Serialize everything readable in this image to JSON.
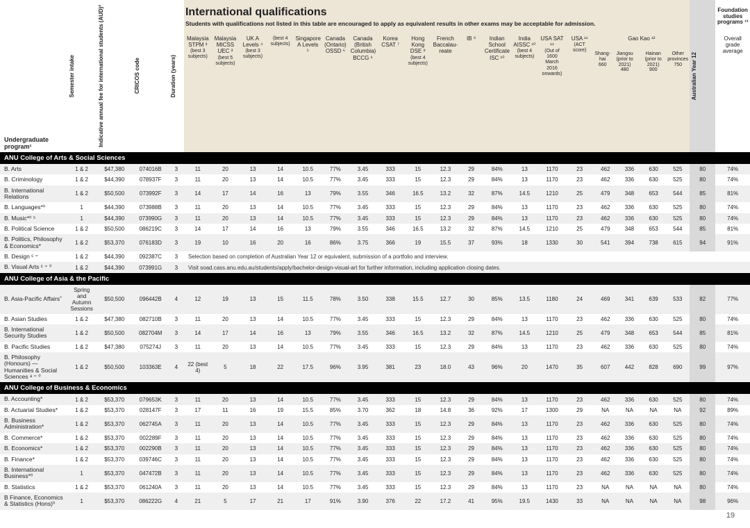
{
  "page_number": "19",
  "intl": {
    "title": "International qualifications",
    "subtitle": "Students with qualifications not listed in this table are encouraged to apply as equivalent results in other exams may be acceptable for admission."
  },
  "fixed_headers": {
    "program": "Undergraduate program¹",
    "semester": "Semester intake",
    "fee": "Indicative annual fee for international students (AUD)²",
    "cricos": "CRICOS code",
    "duration": "Duration (years)"
  },
  "qual_headers": [
    {
      "top": "Malaysia STPM ³",
      "sub": "(best 3 subjects)"
    },
    {
      "top": "Malaysia MICSS UEC ³",
      "sub": "(best 5 subjects)"
    },
    {
      "top": "UK A Levels ⁴",
      "sub": "(best 3 subjects)"
    },
    {
      "top": "",
      "sub": "(best 4 subjects)"
    },
    {
      "top": "Singapore A Levels ⁵",
      "sub": ""
    },
    {
      "top": "Canada (Ontario) OSSD ⁶",
      "sub": ""
    },
    {
      "top": "Canada (British Columbia) BCCG ⁶",
      "sub": ""
    },
    {
      "top": "Korea CSAT ⁷",
      "sub": ""
    },
    {
      "top": "Hong Kong DSE ⁸",
      "sub": "(best 4 subjects)"
    },
    {
      "top": "French Baccalau-reate",
      "sub": ""
    },
    {
      "top": "IB ⁹",
      "sub": ""
    },
    {
      "top": "Indian School Certificate ISC ¹⁰",
      "sub": ""
    },
    {
      "top": "India AISSC ¹⁰",
      "sub": "(best 4 subjects)"
    },
    {
      "top": "USA SAT ¹¹",
      "sub": "(Out of 1600 March 2016 onwards)"
    },
    {
      "top": "USA ¹¹",
      "sub": "(ACT score)"
    }
  ],
  "gaokao": {
    "title": "Gao Kao ¹²",
    "subs": [
      {
        "l1": "Shang-",
        "l2": "hai",
        "l3": "660"
      },
      {
        "l1": "Jiangsu",
        "l2": "(prior to 2021)",
        "l3": "480"
      },
      {
        "l1": "Hainan",
        "l2": "(prior to 2021)",
        "l3": "900"
      },
      {
        "l1": "Other",
        "l2": "provinces",
        "l3": "750"
      }
    ]
  },
  "ay12": "Australian Year 12",
  "foundation": {
    "l1": "Foundation",
    "l2": "studies",
    "l3": "programs ¹³",
    "grade": "Overall grade average"
  },
  "sections": [
    {
      "title": "ANU College of Arts & Social Sciences",
      "rows": [
        {
          "p": "B. Arts",
          "s": "1 & 2",
          "f": "$47,380",
          "c": "074016B",
          "d": "3",
          "q": [
            "11",
            "20",
            "13",
            "14",
            "10.5",
            "77%",
            "3.45",
            "333",
            "15",
            "12.3",
            "29",
            "84%",
            "13",
            "1170",
            "23",
            "462",
            "336",
            "630",
            "525"
          ],
          "ay": "80",
          "g": "74%"
        },
        {
          "p": "B. Criminology",
          "s": "1 & 2",
          "f": "$44,390",
          "c": "078937F",
          "d": "3",
          "q": [
            "11",
            "20",
            "13",
            "14",
            "10.5",
            "77%",
            "3.45",
            "333",
            "15",
            "12.3",
            "29",
            "84%",
            "13",
            "1170",
            "23",
            "462",
            "336",
            "630",
            "525"
          ],
          "ay": "80",
          "g": "74%"
        },
        {
          "p": "B. International Relations",
          "s": "1 & 2",
          "f": "$50,500",
          "c": "073992F",
          "d": "3",
          "q": [
            "14",
            "17",
            "14",
            "16",
            "13",
            "79%",
            "3.55",
            "346",
            "16.5",
            "13.2",
            "32",
            "87%",
            "14.5",
            "1210",
            "25",
            "479",
            "348",
            "653",
            "544"
          ],
          "ay": "85",
          "g": "81%"
        },
        {
          "p": "B. Languages*⁰",
          "s": "1",
          "f": "$44,390",
          "c": "073988B",
          "d": "3",
          "q": [
            "11",
            "20",
            "13",
            "14",
            "10.5",
            "77%",
            "3.45",
            "333",
            "15",
            "12.3",
            "29",
            "84%",
            "13",
            "1170",
            "23",
            "462",
            "336",
            "630",
            "525"
          ],
          "ay": "80",
          "g": "74%"
        },
        {
          "p": "B. Music*⁰ ⁵",
          "s": "1",
          "f": "$44,390",
          "c": "073990G",
          "d": "3",
          "q": [
            "11",
            "20",
            "13",
            "14",
            "10.5",
            "77%",
            "3.45",
            "333",
            "15",
            "12.3",
            "29",
            "84%",
            "13",
            "1170",
            "23",
            "462",
            "336",
            "630",
            "525"
          ],
          "ay": "80",
          "g": "74%"
        },
        {
          "p": "B. Political Science",
          "s": "1 & 2",
          "f": "$50,500",
          "c": "086219C",
          "d": "3",
          "q": [
            "14",
            "17",
            "14",
            "16",
            "13",
            "79%",
            "3.55",
            "346",
            "16.5",
            "13.2",
            "32",
            "87%",
            "14.5",
            "1210",
            "25",
            "479",
            "348",
            "653",
            "544"
          ],
          "ay": "85",
          "g": "81%"
        },
        {
          "p": "B. Politics, Philosophy & Economics*",
          "s": "1 & 2",
          "f": "$53,370",
          "c": "076183D",
          "d": "3",
          "q": [
            "19",
            "10",
            "16",
            "20",
            "16",
            "86%",
            "3.75",
            "366",
            "19",
            "15.5",
            "37",
            "93%",
            "18",
            "1330",
            "30",
            "541",
            "394",
            "738",
            "615"
          ],
          "ay": "94",
          "g": "91%"
        },
        {
          "p": "B. Design ᶜ ⁼",
          "s": "1 & 2",
          "f": "$44,390",
          "c": "092387C",
          "d": "3",
          "note1": "Selection based on completion of Australian Year 12 or equivalent, submission of a portfolio and interview."
        },
        {
          "p": "B. Visual Arts ᶜ ⁼ ⁰",
          "s": "1 & 2",
          "f": "$44,390",
          "c": "073991G",
          "d": "3",
          "note2": "Visit soad.cass.anu.edu.au/students/apply/bachelor-design-visual-art for further information, including application closing dates."
        }
      ]
    },
    {
      "title": "ANU College of Asia & the Pacific",
      "rows": [
        {
          "p": "B. Asia-Pacific Affairs˜",
          "s": "Spring and Autumn Sessions",
          "f": "$50,500",
          "c": "096442B",
          "d": "4",
          "q": [
            "12",
            "19",
            "13",
            "15",
            "11.5",
            "78%",
            "3.50",
            "338",
            "15.5",
            "12.7",
            "30",
            "85%",
            "13.5",
            "1180",
            "24",
            "469",
            "341",
            "639",
            "533"
          ],
          "ay": "82",
          "g": "77%"
        },
        {
          "p": "B. Asian Studies",
          "s": "1 & 2",
          "f": "$47,380",
          "c": "082710B",
          "d": "3",
          "q": [
            "11",
            "20",
            "13",
            "14",
            "10.5",
            "77%",
            "3.45",
            "333",
            "15",
            "12.3",
            "29",
            "84%",
            "13",
            "1170",
            "23",
            "462",
            "336",
            "630",
            "525"
          ],
          "ay": "80",
          "g": "74%"
        },
        {
          "p": "B. International Security Studies",
          "s": "1 & 2",
          "f": "$50,500",
          "c": "082704M",
          "d": "3",
          "q": [
            "14",
            "17",
            "14",
            "16",
            "13",
            "79%",
            "3.55",
            "346",
            "16.5",
            "13.2",
            "32",
            "87%",
            "14.5",
            "1210",
            "25",
            "479",
            "348",
            "653",
            "544"
          ],
          "ay": "85",
          "g": "81%"
        },
        {
          "p": "B. Pacific Studies",
          "s": "1 & 2",
          "f": "$47,380",
          "c": "075274J",
          "d": "3",
          "q": [
            "11",
            "20",
            "13",
            "14",
            "10.5",
            "77%",
            "3.45",
            "333",
            "15",
            "12.3",
            "29",
            "84%",
            "13",
            "1170",
            "23",
            "462",
            "336",
            "630",
            "525"
          ],
          "ay": "80",
          "g": "74%"
        },
        {
          "p": "B. Philosophy (Honours) — Humanities & Social Sciences ᵃ ⁼ ⁰",
          "s": "1 & 2",
          "f": "$50,500",
          "c": "103363E",
          "d": "4",
          "q": [
            "22 (best 4)",
            "5",
            "18",
            "22",
            "17.5",
            "96%",
            "3.95",
            "381",
            "23",
            "18.0",
            "43",
            "96%",
            "20",
            "1470",
            "35",
            "607",
            "442",
            "828",
            "690"
          ],
          "ay": "99",
          "g": "97%"
        }
      ]
    },
    {
      "title": "ANU College of Business & Economics",
      "rows": [
        {
          "p": "B. Accounting*",
          "s": "1 & 2",
          "f": "$53,370",
          "c": "079653K",
          "d": "3",
          "q": [
            "11",
            "20",
            "13",
            "14",
            "10.5",
            "77%",
            "3.45",
            "333",
            "15",
            "12.3",
            "29",
            "84%",
            "13",
            "1170",
            "23",
            "462",
            "336",
            "630",
            "525"
          ],
          "ay": "80",
          "g": "74%"
        },
        {
          "p": "B. Actuarial Studies*",
          "s": "1 & 2",
          "f": "$53,370",
          "c": "028147F",
          "d": "3",
          "q": [
            "17",
            "11",
            "16",
            "19",
            "15.5",
            "85%",
            "3.70",
            "362",
            "18",
            "14.8",
            "36",
            "92%",
            "17",
            "1300",
            "29",
            "NA",
            "NA",
            "NA",
            "NA"
          ],
          "ay": "92",
          "g": "89%"
        },
        {
          "p": "B. Business Administration*",
          "s": "1 & 2",
          "f": "$53,370",
          "c": "062745A",
          "d": "3",
          "q": [
            "11",
            "20",
            "13",
            "14",
            "10.5",
            "77%",
            "3.45",
            "333",
            "15",
            "12.3",
            "29",
            "84%",
            "13",
            "1170",
            "23",
            "462",
            "336",
            "630",
            "525"
          ],
          "ay": "80",
          "g": "74%"
        },
        {
          "p": "B. Commerce*",
          "s": "1 & 2",
          "f": "$53,370",
          "c": "002289F",
          "d": "3",
          "q": [
            "11",
            "20",
            "13",
            "14",
            "10.5",
            "77%",
            "3.45",
            "333",
            "15",
            "12.3",
            "29",
            "84%",
            "13",
            "1170",
            "23",
            "462",
            "336",
            "630",
            "525"
          ],
          "ay": "80",
          "g": "74%"
        },
        {
          "p": "B. Economics*",
          "s": "1 & 2",
          "f": "$53,370",
          "c": "002290B",
          "d": "3",
          "q": [
            "11",
            "20",
            "13",
            "14",
            "10.5",
            "77%",
            "3.45",
            "333",
            "15",
            "12.3",
            "29",
            "84%",
            "13",
            "1170",
            "23",
            "462",
            "336",
            "630",
            "525"
          ],
          "ay": "80",
          "g": "74%"
        },
        {
          "p": "B. Finance*",
          "s": "1 & 2",
          "f": "$53,370",
          "c": "039746C",
          "d": "3",
          "q": [
            "11",
            "20",
            "13",
            "14",
            "10.5",
            "77%",
            "3.45",
            "333",
            "15",
            "12.3",
            "29",
            "84%",
            "13",
            "1170",
            "23",
            "462",
            "336",
            "630",
            "525"
          ],
          "ay": "80",
          "g": "74%"
        },
        {
          "p": "B. International Business*⁰",
          "s": "1",
          "f": "$53,370",
          "c": "047472B",
          "d": "3",
          "q": [
            "11",
            "20",
            "13",
            "14",
            "10.5",
            "77%",
            "3.45",
            "333",
            "15",
            "12.3",
            "29",
            "84%",
            "13",
            "1170",
            "23",
            "462",
            "336",
            "630",
            "525"
          ],
          "ay": "80",
          "g": "74%"
        },
        {
          "p": "B. Statistics",
          "s": "1 & 2",
          "f": "$53,370",
          "c": "061240A",
          "d": "3",
          "q": [
            "11",
            "20",
            "13",
            "14",
            "10.5",
            "77%",
            "3.45",
            "333",
            "15",
            "12.3",
            "29",
            "84%",
            "13",
            "1170",
            "23",
            "NA",
            "NA",
            "NA",
            "NA"
          ],
          "ay": "80",
          "g": "74%"
        },
        {
          "p": "B Finance, Economics & Statistics (Hons)⁰",
          "s": "1",
          "f": "$53,370",
          "c": "086222G",
          "d": "4",
          "q": [
            "21",
            "5",
            "17",
            "21",
            "17",
            "91%",
            "3.90",
            "376",
            "22",
            "17.2",
            "41",
            "95%",
            "19.5",
            "1430",
            "33",
            "NA",
            "NA",
            "NA",
            "NA"
          ],
          "ay": "98",
          "g": "96%"
        }
      ]
    }
  ],
  "styling": {
    "header_bg": "#ede5d6",
    "section_bg": "#000000",
    "section_fg": "#ffffff",
    "zebra_even": "#efefef",
    "ay12_shade": "#d9d9d9",
    "text": "#222222"
  }
}
